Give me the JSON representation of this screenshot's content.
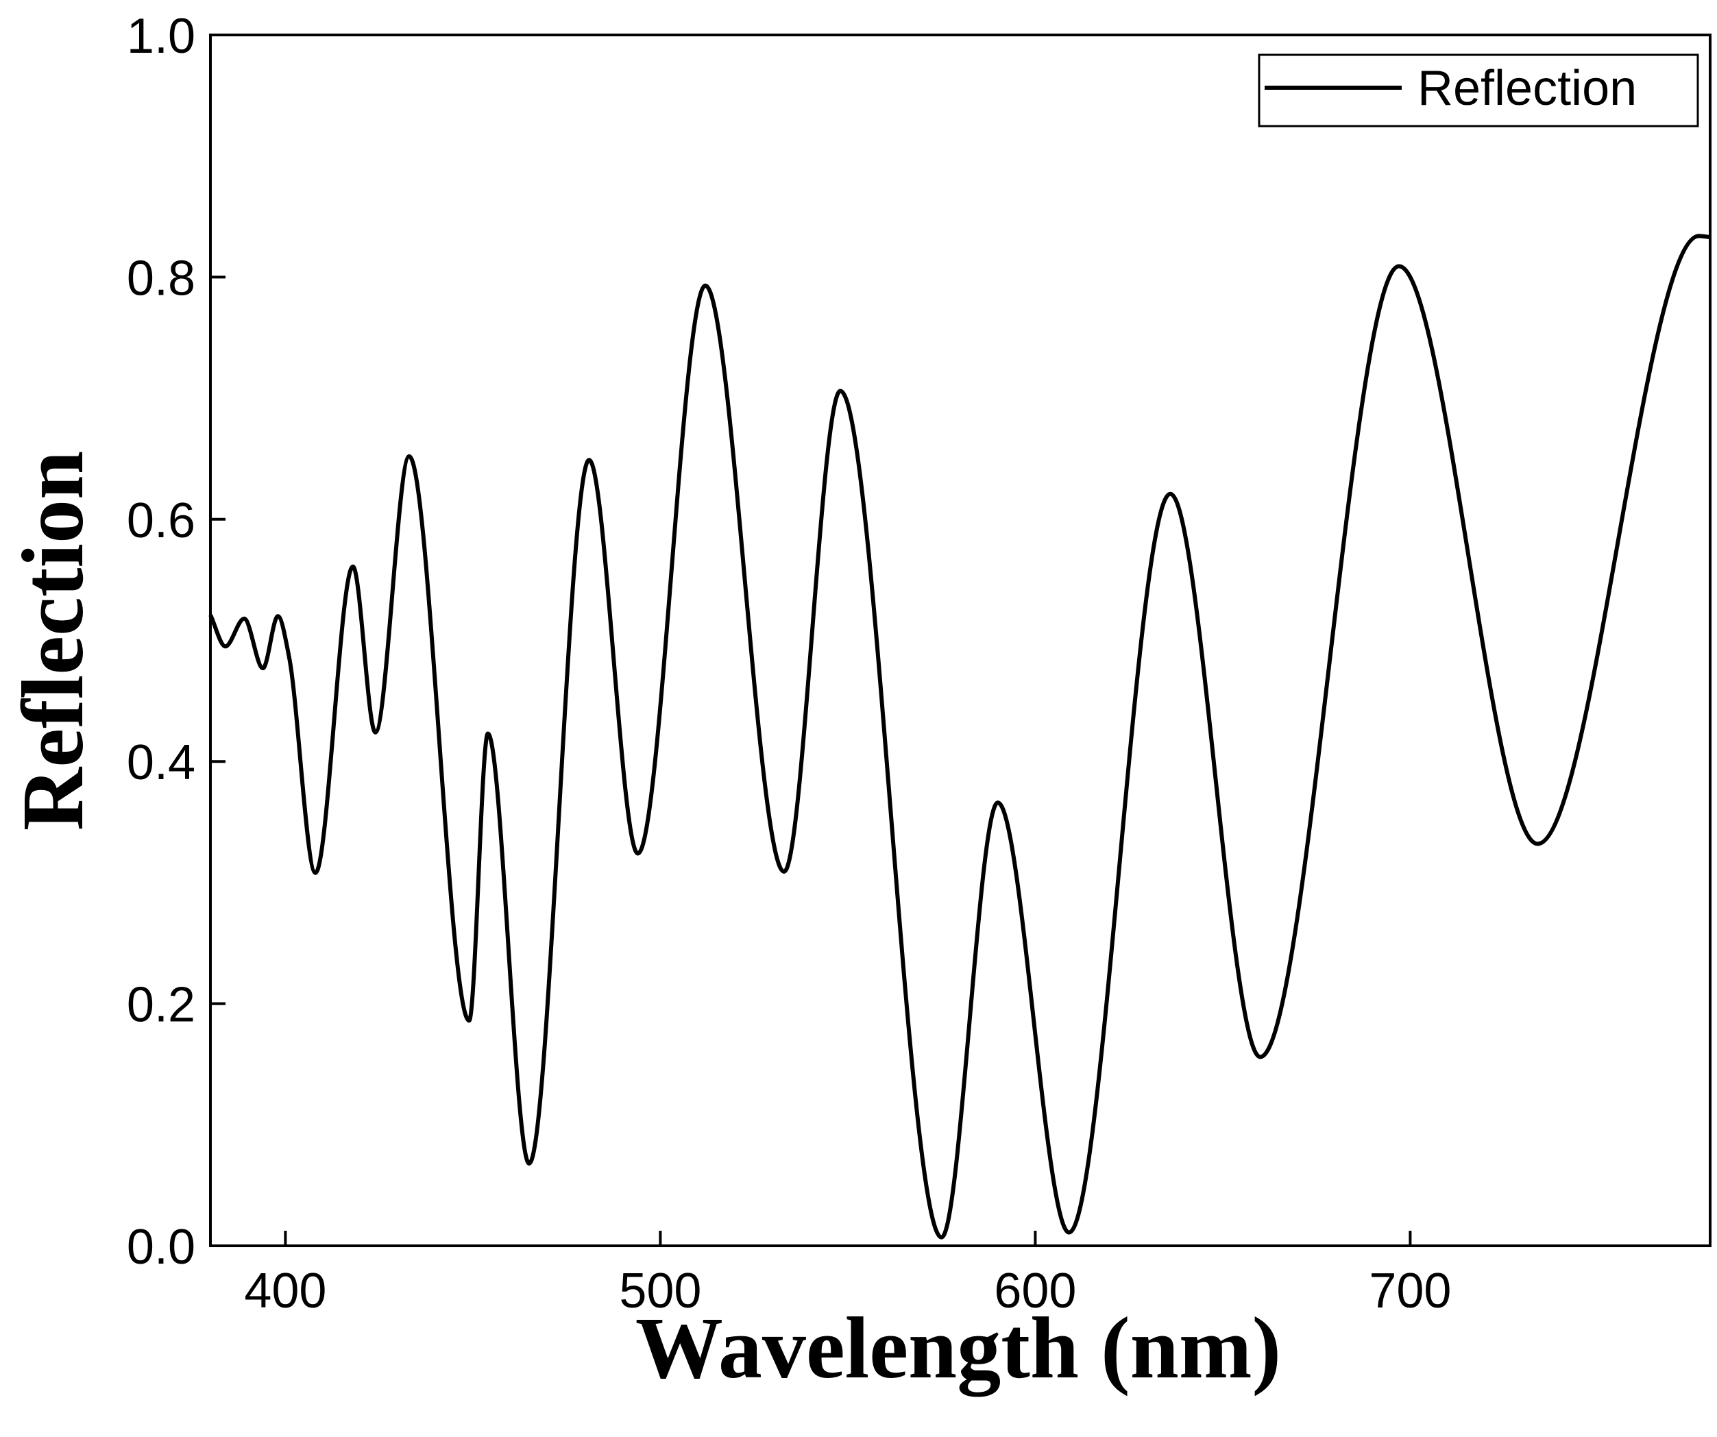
{
  "chart_data": {
    "type": "line",
    "xlabel": "Wavelength (nm)",
    "ylabel": "Reflection",
    "xlim": [
      380,
      780
    ],
    "xticks": [
      400,
      500,
      600,
      700
    ],
    "ylim": [
      0,
      1
    ],
    "yticks": [
      {
        "value": 0,
        "label": "0.0"
      },
      0.2,
      0.4,
      0.6,
      0.8,
      {
        "value": 1,
        "label": "1.0"
      }
    ],
    "legend": "upper right",
    "series": [
      {
        "name": "Reflection",
        "color": "#000000",
        "x": [
          380,
          384,
          389,
          394,
          398,
          401,
          408,
          418,
          424,
          433,
          449,
          454,
          465,
          481,
          494,
          512,
          533,
          548,
          575,
          590,
          609,
          636,
          660,
          697,
          734,
          777,
          780
        ],
        "values": [
          0.521,
          0.495,
          0.518,
          0.477,
          0.52,
          0.486,
          0.308,
          0.561,
          0.424,
          0.652,
          0.186,
          0.423,
          0.068,
          0.649,
          0.324,
          0.793,
          0.309,
          0.706,
          0.007,
          0.366,
          0.011,
          0.621,
          0.156,
          0.809,
          0.332,
          0.834,
          0.833
        ]
      }
    ]
  }
}
